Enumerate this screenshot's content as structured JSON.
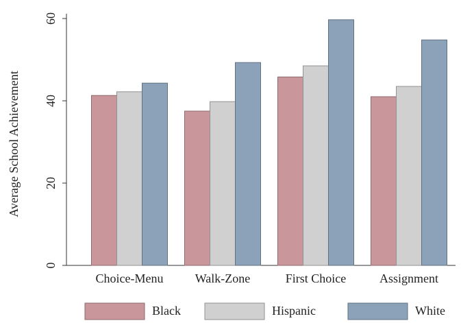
{
  "chart_data": {
    "type": "bar",
    "y_label": "Average School Achievement",
    "categories": [
      "Choice-Menu",
      "Walk-Zone",
      "First Choice",
      "Assignment"
    ],
    "series": [
      {
        "name": "Black",
        "color": "#c9979b",
        "values": [
          41.3,
          37.5,
          45.8,
          41.0
        ]
      },
      {
        "name": "Hispanic",
        "color": "#d0d0d0",
        "values": [
          42.2,
          39.8,
          48.5,
          43.5
        ]
      },
      {
        "name": "White",
        "color": "#8ba2b8",
        "values": [
          44.3,
          49.3,
          59.7,
          54.8
        ]
      }
    ],
    "ylim": [
      0,
      60
    ],
    "yticks": [
      0,
      20,
      40,
      60
    ],
    "grid": false,
    "legend": "bottom"
  }
}
